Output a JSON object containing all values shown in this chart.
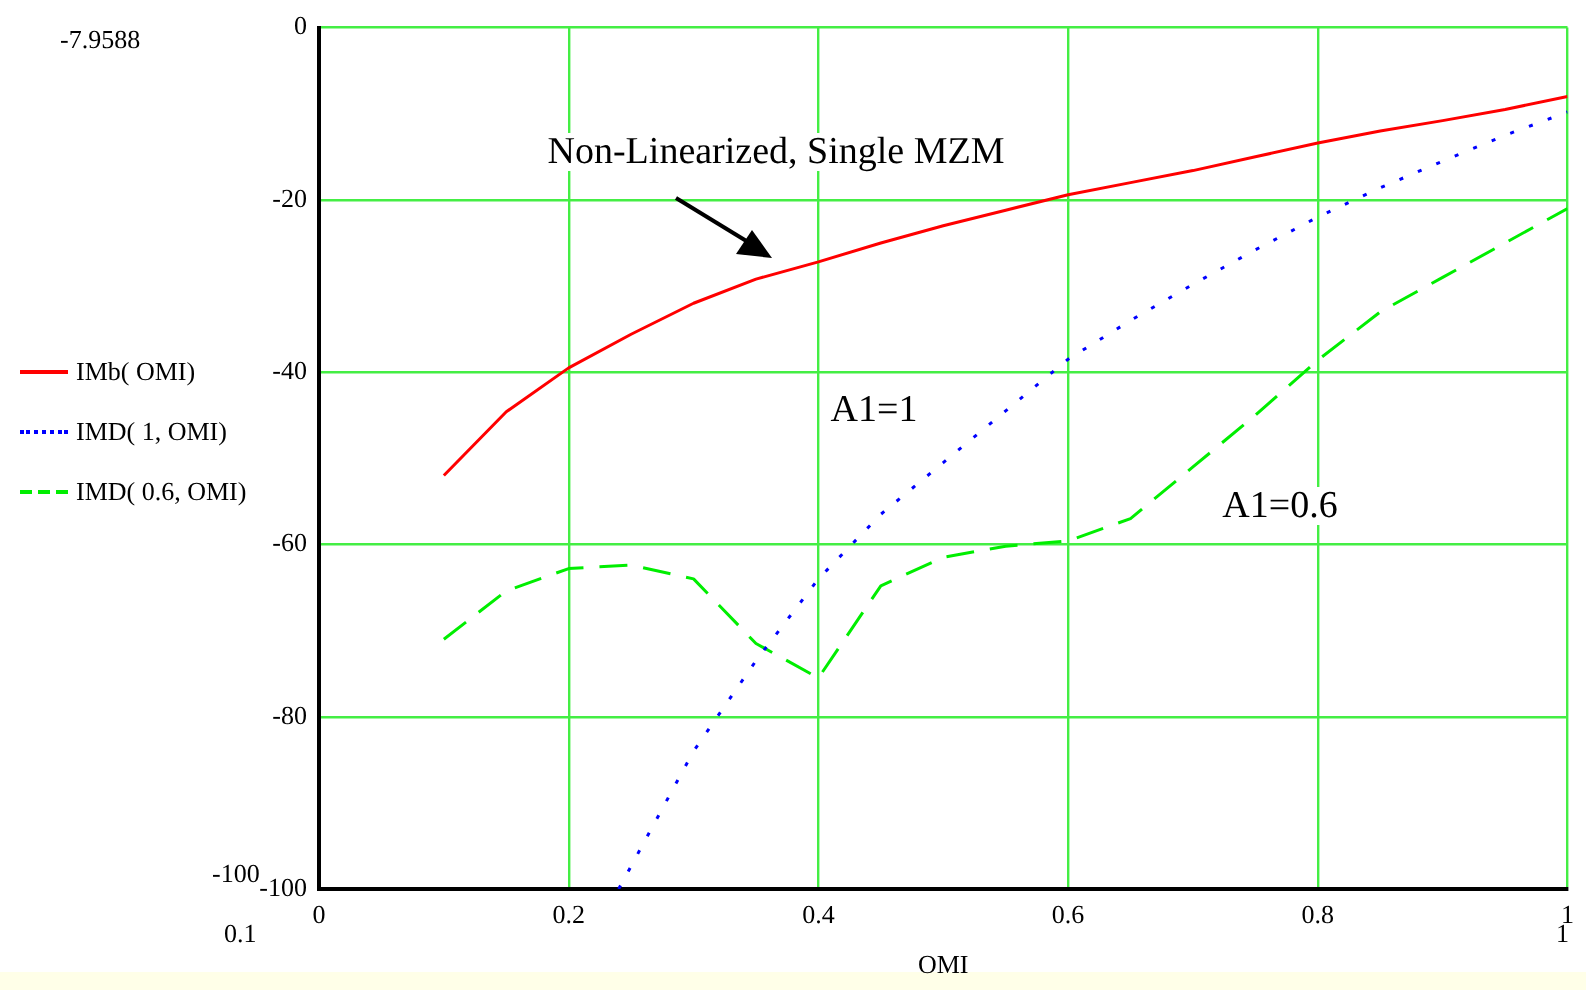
{
  "chart_data": {
    "type": "line",
    "xlabel": "OMI",
    "x": [
      0.1,
      0.15,
      0.2,
      0.25,
      0.3,
      0.35,
      0.4,
      0.45,
      0.5,
      0.55,
      0.6,
      0.65,
      0.7,
      0.75,
      0.8,
      0.85,
      0.9,
      0.95,
      1.0
    ],
    "series": [
      {
        "name": "IMb( OMI)",
        "color": "#ff0000",
        "line_style": "solid",
        "values": [
          -52,
          -44.6,
          -39.5,
          -35.6,
          -32,
          -29.2,
          -27.2,
          -25,
          -23,
          -21.2,
          -19.4,
          -18,
          -16.6,
          -15,
          -13.4,
          -12,
          -10.8,
          -9.5,
          -8
        ]
      },
      {
        "name": "IMD( 1, OMI)",
        "color": "#0000ff",
        "line_style": "dotted",
        "x": [
          0.24,
          0.3,
          0.35,
          0.4,
          0.45,
          0.5,
          0.55,
          0.6,
          0.65,
          0.7,
          0.75,
          0.8,
          0.85,
          0.9,
          0.95,
          1.0
        ],
        "values": [
          -100,
          -84,
          -73.5,
          -64,
          -56.5,
          -50.5,
          -44.5,
          -38.5,
          -34,
          -29.8,
          -25.8,
          -22,
          -18.6,
          -15.5,
          -12.5,
          -9.8
        ]
      },
      {
        "name": "IMD( 0.6, OMI)",
        "color": "#00ee00",
        "line_style": "dashed",
        "values": [
          -71,
          -65.4,
          -62.8,
          -62.4,
          -64,
          -71.5,
          -75.5,
          -64.8,
          -61.5,
          -60.2,
          -59.6,
          -57,
          -51,
          -45,
          -38.6,
          -33,
          -29,
          -25,
          -21
        ]
      }
    ],
    "xlim": [
      0,
      1
    ],
    "xticks": [
      0,
      0.2,
      0.4,
      0.6,
      0.8,
      1
    ],
    "ylim": [
      -100,
      0
    ],
    "yticks": [
      0,
      -20,
      -40,
      -60,
      -80,
      -100
    ],
    "grid": true,
    "legend": "left",
    "marker": "none",
    "annotations": [
      "-7.9588",
      "-100",
      "0.1",
      "1",
      "Non-Linearized, Single MZM",
      "A1=1",
      "A1=0.6"
    ]
  }
}
